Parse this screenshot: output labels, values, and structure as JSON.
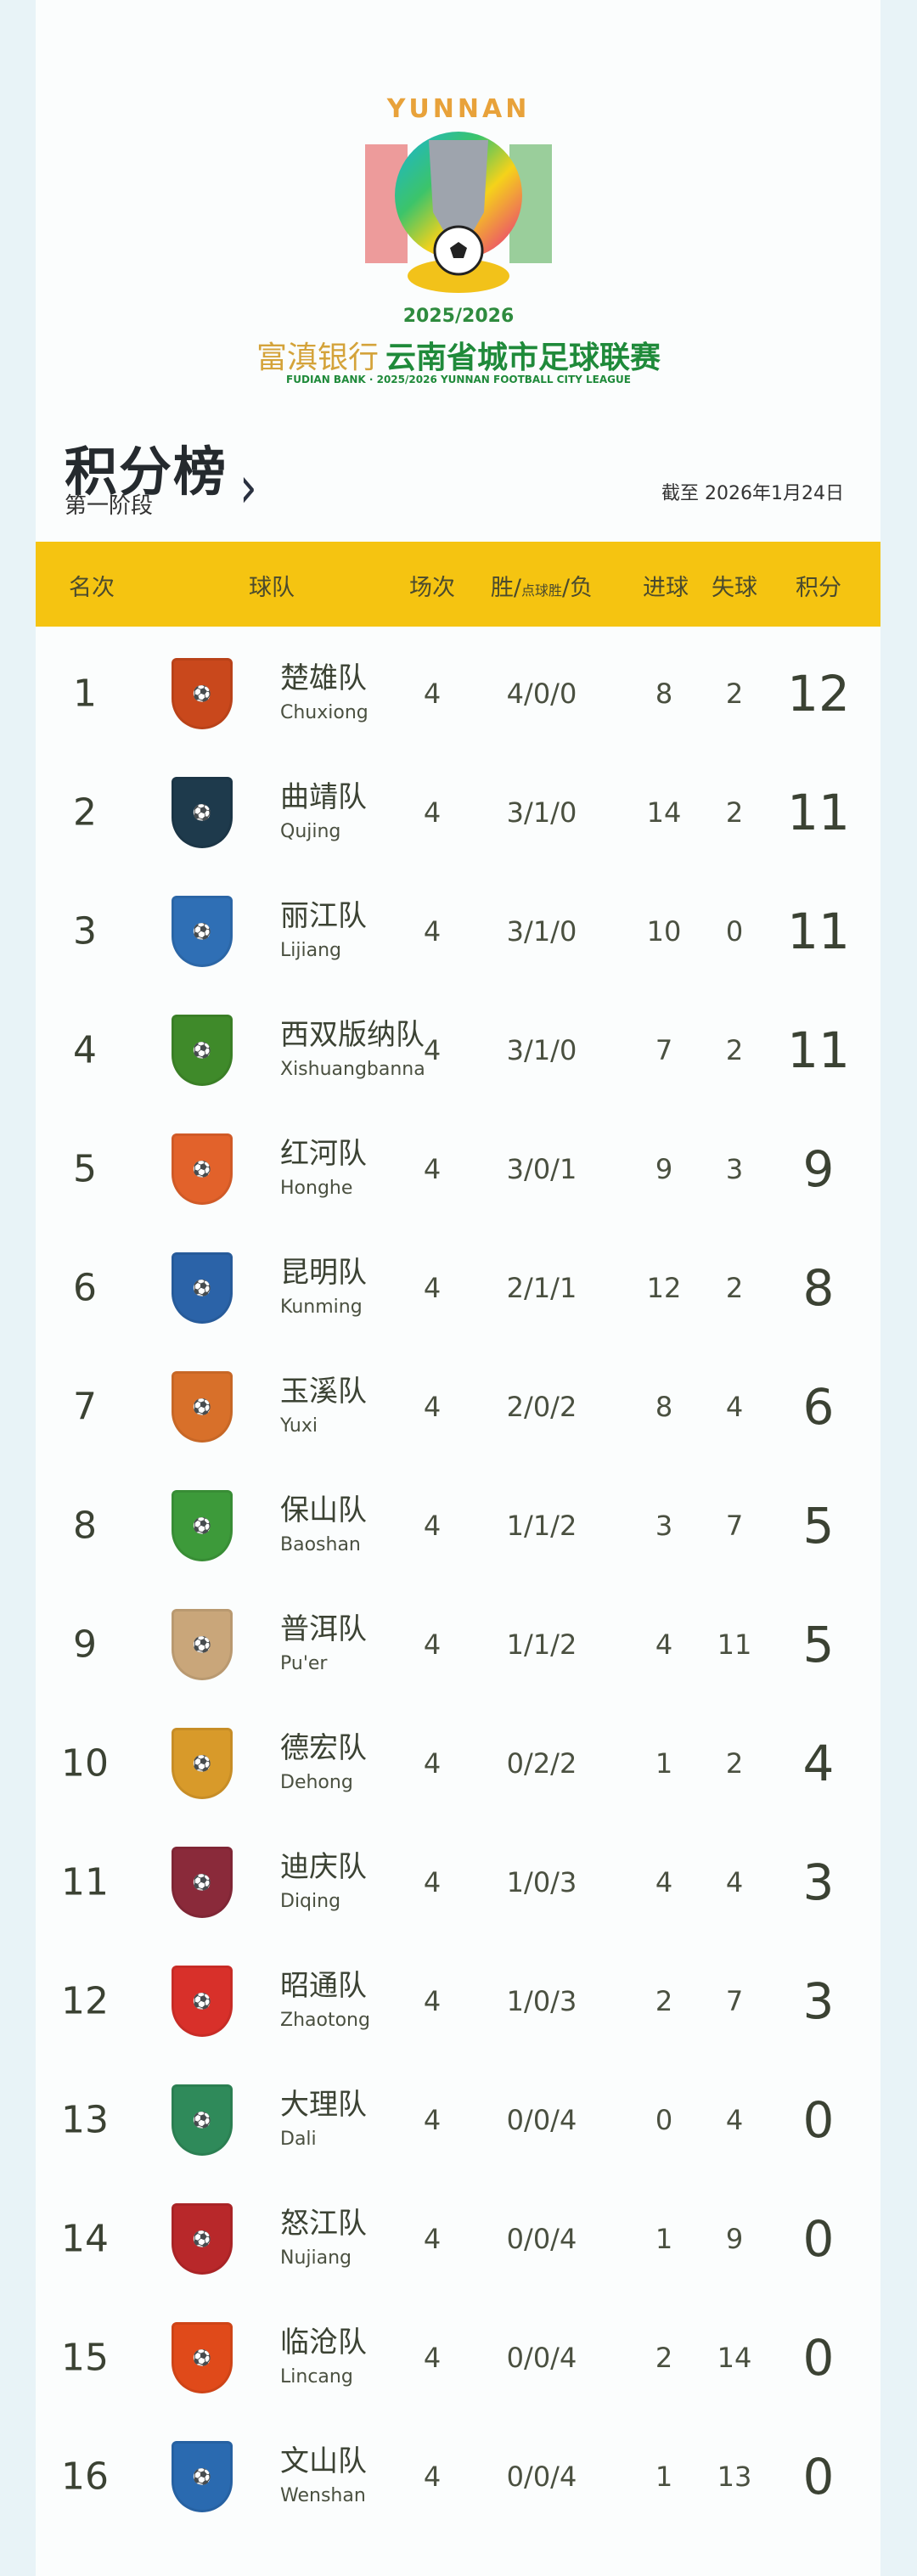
{
  "header": {
    "logo_text": "YUNNAN",
    "season": "2025/2026",
    "bank": "富滇银行",
    "league_name": "云南省城市足球联赛",
    "league_en": "FUDIAN BANK · 2025/2026 YUNNAN FOOTBALL CITY  LEAGUE"
  },
  "standings": {
    "title": "积分榜",
    "subtitle": "第一阶段",
    "as_of": "截至 2026年1月24日",
    "columns": {
      "rank": "名次",
      "team": "球队",
      "played": "场次",
      "wdl_a": "胜/",
      "wdl_b": "点球胜",
      "wdl_c": "/负",
      "gf": "进球",
      "ga": "失球",
      "points": "积分"
    },
    "header_color": "#f5c411",
    "rows": [
      {
        "rank": "1",
        "team": "楚雄队",
        "team_en": "Chuxiong",
        "played": "4",
        "wdl": "4/0/0",
        "gf": "8",
        "ga": "2",
        "points": "12",
        "crest_color": "#c9481c"
      },
      {
        "rank": "2",
        "team": "曲靖队",
        "team_en": "Qujing",
        "played": "4",
        "wdl": "3/1/0",
        "gf": "14",
        "ga": "2",
        "points": "11",
        "crest_color": "#1e3a4c"
      },
      {
        "rank": "3",
        "team": "丽江队",
        "team_en": "Lijiang",
        "played": "4",
        "wdl": "3/1/0",
        "gf": "10",
        "ga": "0",
        "points": "11",
        "crest_color": "#2f6fb5"
      },
      {
        "rank": "4",
        "team": "西双版纳队",
        "team_en": "Xishuangbanna",
        "played": "4",
        "wdl": "3/1/0",
        "gf": "7",
        "ga": "2",
        "points": "11",
        "crest_color": "#3f8a2a"
      },
      {
        "rank": "5",
        "team": "红河队",
        "team_en": "Honghe",
        "played": "4",
        "wdl": "3/0/1",
        "gf": "9",
        "ga": "3",
        "points": "9",
        "crest_color": "#e2622b"
      },
      {
        "rank": "6",
        "team": "昆明队",
        "team_en": "Kunming",
        "played": "4",
        "wdl": "2/1/1",
        "gf": "12",
        "ga": "2",
        "points": "8",
        "crest_color": "#2b63a8"
      },
      {
        "rank": "7",
        "team": "玉溪队",
        "team_en": "Yuxi",
        "played": "4",
        "wdl": "2/0/2",
        "gf": "8",
        "ga": "4",
        "points": "6",
        "crest_color": "#d8702a"
      },
      {
        "rank": "8",
        "team": "保山队",
        "team_en": "Baoshan",
        "played": "4",
        "wdl": "1/1/2",
        "gf": "3",
        "ga": "7",
        "points": "5",
        "crest_color": "#3d9a3a"
      },
      {
        "rank": "9",
        "team": "普洱队",
        "team_en": "Pu'er",
        "played": "4",
        "wdl": "1/1/2",
        "gf": "4",
        "ga": "11",
        "points": "5",
        "crest_color": "#c9a67a"
      },
      {
        "rank": "10",
        "team": "德宏队",
        "team_en": "Dehong",
        "played": "4",
        "wdl": "0/2/2",
        "gf": "1",
        "ga": "2",
        "points": "4",
        "crest_color": "#d89a2a"
      },
      {
        "rank": "11",
        "team": "迪庆队",
        "team_en": "Diqing",
        "played": "4",
        "wdl": "1/0/3",
        "gf": "4",
        "ga": "4",
        "points": "3",
        "crest_color": "#8a2a3a"
      },
      {
        "rank": "12",
        "team": "昭通队",
        "team_en": "Zhaotong",
        "played": "4",
        "wdl": "1/0/3",
        "gf": "2",
        "ga": "7",
        "points": "3",
        "crest_color": "#d8302a"
      },
      {
        "rank": "13",
        "team": "大理队",
        "team_en": "Dali",
        "played": "4",
        "wdl": "0/0/4",
        "gf": "0",
        "ga": "4",
        "points": "0",
        "crest_color": "#2f8a5a"
      },
      {
        "rank": "14",
        "team": "怒江队",
        "team_en": "Nujiang",
        "played": "4",
        "wdl": "0/0/4",
        "gf": "1",
        "ga": "9",
        "points": "0",
        "crest_color": "#b8282a"
      },
      {
        "rank": "15",
        "team": "临沧队",
        "team_en": "Lincang",
        "played": "4",
        "wdl": "0/0/4",
        "gf": "2",
        "ga": "14",
        "points": "0",
        "crest_color": "#e04a1a"
      },
      {
        "rank": "16",
        "team": "文山队",
        "team_en": "Wenshan",
        "played": "4",
        "wdl": "0/0/4",
        "gf": "1",
        "ga": "13",
        "points": "0",
        "crest_color": "#2a6ab0"
      }
    ]
  }
}
